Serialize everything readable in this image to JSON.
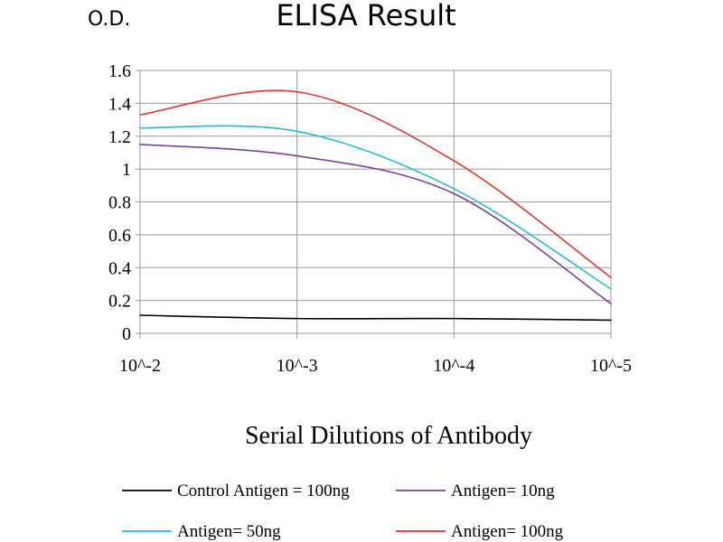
{
  "chart_data": {
    "type": "line",
    "title": "ELISA Result",
    "ylabel": "O.D.",
    "xlabel": "Serial Dilutions of Antibody",
    "x_categories": [
      "10^-2",
      "10^-3",
      "10^-4",
      "10^-5"
    ],
    "ylim": [
      0,
      1.6
    ],
    "y_ticks": [
      0,
      0.2,
      0.4,
      0.6,
      0.8,
      1,
      1.2,
      1.4,
      1.6
    ],
    "grid": true,
    "legend_position": "bottom",
    "series": [
      {
        "name": "Control Antigen = 100ng",
        "color": "#000000",
        "x": [
          0,
          1,
          2,
          3
        ],
        "values": [
          0.11,
          0.09,
          0.09,
          0.08
        ]
      },
      {
        "name": "Antigen= 10ng",
        "color": "#7B3FA0",
        "x": [
          0,
          1,
          2,
          3
        ],
        "values": [
          1.15,
          1.08,
          0.85,
          0.18
        ]
      },
      {
        "name": "Antigen= 50ng",
        "color": "#2EB8D6",
        "x": [
          0,
          1,
          2,
          3
        ],
        "values": [
          1.25,
          1.23,
          0.88,
          0.27
        ]
      },
      {
        "name": "Antigen= 100ng",
        "color": "#D63A2E",
        "x": [
          0,
          1,
          2,
          3
        ],
        "values": [
          1.33,
          1.47,
          1.05,
          0.34
        ]
      }
    ]
  }
}
